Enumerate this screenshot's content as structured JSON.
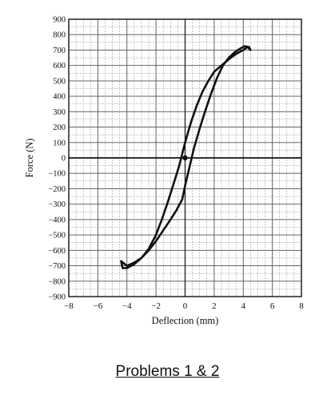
{
  "chart_data": {
    "type": "line",
    "xlabel": "Deflection (mm)",
    "ylabel": "Force (N)",
    "xlim": [
      -8,
      8
    ],
    "ylim": [
      -900,
      900
    ],
    "x_ticks": [
      -8,
      -6,
      -4,
      -2,
      0,
      2,
      4,
      6,
      8
    ],
    "y_ticks": [
      900,
      800,
      700,
      600,
      500,
      400,
      300,
      200,
      100,
      0,
      -100,
      -200,
      -300,
      -400,
      -500,
      -600,
      -700,
      -800,
      -900
    ],
    "grid": true,
    "minor_grid_step_x": 0.5,
    "minor_grid_step_y": 50,
    "series": [
      {
        "closed": true,
        "x": [
          4.3,
          4.0,
          3.5,
          3.0,
          2.5,
          2.0,
          1.6,
          1.2,
          0.8,
          0.4,
          0.0,
          -0.4,
          -0.8,
          -1.2,
          -1.6,
          -2.0,
          -2.5,
          -3.0,
          -3.5,
          -4.0,
          -4.3,
          -4.4,
          -4.0,
          -3.5,
          -3.0,
          -2.5,
          -2.0,
          -1.5,
          -1.0,
          -0.6,
          -0.2,
          0.0,
          0.3,
          0.6,
          1.0,
          1.4,
          1.8,
          2.2,
          2.6,
          3.0,
          3.4,
          3.8,
          4.1,
          4.4,
          4.5
        ],
        "y": [
          720,
          700,
          675,
          640,
          600,
          560,
          500,
          430,
          340,
          230,
          100,
          -50,
          -170,
          -290,
          -400,
          -500,
          -590,
          -650,
          -690,
          -715,
          -715,
          -670,
          -700,
          -680,
          -650,
          -600,
          -540,
          -470,
          -400,
          -340,
          -270,
          -180,
          -60,
          60,
          190,
          310,
          420,
          520,
          600,
          650,
          685,
          710,
          725,
          720,
          700
        ]
      }
    ],
    "markers": [
      {
        "x": 0,
        "y": 0
      }
    ]
  },
  "caption": "Problems 1 & 2",
  "colors": {
    "line": "#111111",
    "grid": "#8a8a8a",
    "axis": "#111111"
  }
}
